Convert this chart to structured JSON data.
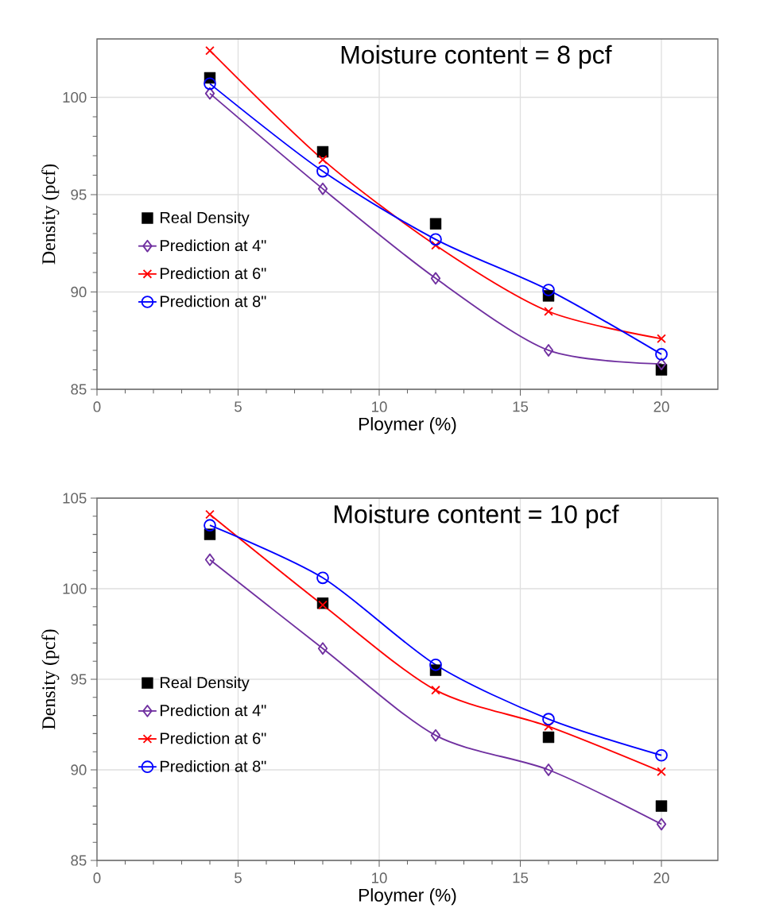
{
  "chart_data": [
    {
      "type": "line",
      "title": "Moisture content = 8 pcf",
      "xlabel": "Ploymer (%)",
      "ylabel": "Density (pcf)",
      "x": [
        4,
        8,
        12,
        16,
        20
      ],
      "xlim": [
        0,
        22
      ],
      "ylim": [
        85,
        103
      ],
      "xticks": [
        0,
        5,
        10,
        15,
        20
      ],
      "yticks": [
        85,
        90,
        95,
        100
      ],
      "grid": true,
      "legend": "left",
      "series": [
        {
          "name": "Real Density",
          "type": "scatter",
          "marker": "square",
          "color": "#000000",
          "values": [
            101.0,
            97.2,
            93.5,
            89.8,
            86.0
          ]
        },
        {
          "name": "Prediction at 4\"",
          "marker": "diamond",
          "color": "#7030a0",
          "values": [
            100.2,
            95.3,
            90.7,
            87.0,
            86.3
          ]
        },
        {
          "name": "Prediction at 6\"",
          "marker": "cross",
          "color": "#ff0000",
          "values": [
            102.4,
            96.8,
            92.4,
            89.0,
            87.6
          ]
        },
        {
          "name": "Prediction at 8\"",
          "marker": "circle",
          "color": "#0000ff",
          "values": [
            100.7,
            96.2,
            92.7,
            90.1,
            86.8
          ]
        }
      ]
    },
    {
      "type": "line",
      "title": "Moisture content = 10 pcf",
      "xlabel": "Ploymer (%)",
      "ylabel": "Density (pcf)",
      "x": [
        4,
        8,
        12,
        16,
        20
      ],
      "xlim": [
        0,
        22
      ],
      "ylim": [
        85,
        105
      ],
      "xticks": [
        0,
        5,
        10,
        15,
        20
      ],
      "yticks": [
        85,
        90,
        95,
        100,
        105
      ],
      "grid": true,
      "legend": "left",
      "series": [
        {
          "name": "Real Density",
          "type": "scatter",
          "marker": "square",
          "color": "#000000",
          "values": [
            103.0,
            99.2,
            95.5,
            91.8,
            88.0
          ]
        },
        {
          "name": "Prediction at 4\"",
          "marker": "diamond",
          "color": "#7030a0",
          "values": [
            101.6,
            96.7,
            91.9,
            90.0,
            87.0
          ]
        },
        {
          "name": "Prediction at 6\"",
          "marker": "cross",
          "color": "#ff0000",
          "values": [
            104.1,
            99.1,
            94.4,
            92.4,
            89.9
          ]
        },
        {
          "name": "Prediction at 8\"",
          "marker": "circle",
          "color": "#0000ff",
          "values": [
            103.5,
            100.6,
            95.8,
            92.8,
            90.8
          ]
        }
      ]
    }
  ]
}
